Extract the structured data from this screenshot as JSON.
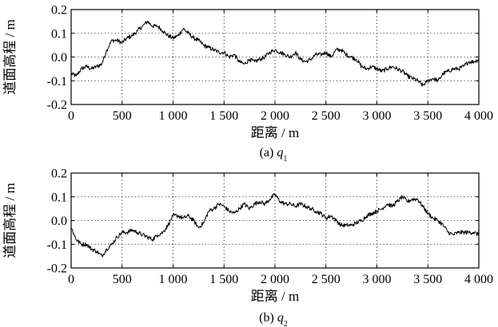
{
  "chart_data": [
    {
      "type": "line",
      "caption_prefix": "(a)",
      "caption_var": "q",
      "caption_sub": "1",
      "xlabel": "距离 / m",
      "ylabel": "道面高程 / m",
      "xlim": [
        0,
        4000
      ],
      "ylim": [
        -0.2,
        0.2
      ],
      "xticks": [
        0,
        500,
        1000,
        1500,
        2000,
        2500,
        3000,
        3500,
        4000
      ],
      "xtick_labels": [
        "0",
        "500",
        "1 000",
        "1 500",
        "2 000",
        "2 500",
        "3 000",
        "3 500",
        "4 000"
      ],
      "yticks": [
        -0.2,
        -0.1,
        0.0,
        0.1,
        0.2
      ],
      "ytick_labels": [
        "-0.2",
        "-0.1",
        "0.0",
        "0.1",
        "0.2"
      ],
      "grid": true,
      "series": [
        {
          "color": "#000000",
          "x": [
            0,
            50,
            100,
            150,
            200,
            250,
            300,
            350,
            400,
            450,
            500,
            550,
            600,
            650,
            700,
            750,
            800,
            850,
            900,
            950,
            1000,
            1050,
            1100,
            1150,
            1200,
            1250,
            1300,
            1350,
            1400,
            1450,
            1500,
            1550,
            1600,
            1650,
            1700,
            1750,
            1800,
            1850,
            1900,
            1950,
            2000,
            2050,
            2100,
            2150,
            2200,
            2250,
            2300,
            2350,
            2400,
            2450,
            2500,
            2550,
            2600,
            2650,
            2700,
            2750,
            2800,
            2850,
            2900,
            2950,
            3000,
            3050,
            3100,
            3150,
            3200,
            3250,
            3300,
            3350,
            3400,
            3450,
            3500,
            3550,
            3600,
            3650,
            3700,
            3750,
            3800,
            3850,
            3900,
            3950,
            4000
          ],
          "y": [
            -0.07,
            -0.08,
            -0.05,
            -0.04,
            -0.05,
            -0.04,
            -0.03,
            0.03,
            0.07,
            0.07,
            0.06,
            0.08,
            0.09,
            0.11,
            0.13,
            0.15,
            0.13,
            0.13,
            0.11,
            0.09,
            0.08,
            0.09,
            0.12,
            0.1,
            0.08,
            0.07,
            0.05,
            0.04,
            0.03,
            0.02,
            0.02,
            0.0,
            0.01,
            -0.02,
            -0.03,
            -0.01,
            -0.02,
            -0.01,
            0.0,
            0.02,
            0.03,
            0.02,
            0.01,
            0.0,
            0.02,
            -0.01,
            -0.02,
            -0.01,
            0.01,
            0.01,
            0.02,
            0.0,
            0.03,
            0.03,
            0.01,
            0.0,
            -0.01,
            -0.04,
            -0.05,
            -0.04,
            -0.05,
            -0.06,
            -0.05,
            -0.04,
            -0.05,
            -0.06,
            -0.08,
            -0.09,
            -0.1,
            -0.12,
            -0.1,
            -0.09,
            -0.1,
            -0.07,
            -0.06,
            -0.05,
            -0.05,
            -0.04,
            -0.02,
            -0.02,
            -0.01
          ]
        }
      ]
    },
    {
      "type": "line",
      "caption_prefix": "(b)",
      "caption_var": "q",
      "caption_sub": "2",
      "xlabel": "距离 / m",
      "ylabel": "道面高程 / m",
      "xlim": [
        0,
        4000
      ],
      "ylim": [
        -0.2,
        0.2
      ],
      "xticks": [
        0,
        500,
        1000,
        1500,
        2000,
        2500,
        3000,
        3500,
        4000
      ],
      "xtick_labels": [
        "0",
        "500",
        "1 000",
        "1 500",
        "2 000",
        "2 500",
        "3 000",
        "3 500",
        "4 000"
      ],
      "yticks": [
        -0.2,
        -0.1,
        0.0,
        0.1,
        0.2
      ],
      "ytick_labels": [
        "-0.2",
        "-0.1",
        "0.0",
        "0.1",
        "0.2"
      ],
      "grid": true,
      "series": [
        {
          "color": "#000000",
          "x": [
            0,
            50,
            100,
            150,
            200,
            250,
            300,
            350,
            400,
            450,
            500,
            550,
            600,
            650,
            700,
            750,
            800,
            850,
            900,
            950,
            1000,
            1050,
            1100,
            1150,
            1200,
            1250,
            1300,
            1350,
            1400,
            1450,
            1500,
            1550,
            1600,
            1650,
            1700,
            1750,
            1800,
            1850,
            1900,
            1950,
            2000,
            2050,
            2100,
            2150,
            2200,
            2250,
            2300,
            2350,
            2400,
            2450,
            2500,
            2550,
            2600,
            2650,
            2700,
            2750,
            2800,
            2850,
            2900,
            2950,
            3000,
            3050,
            3100,
            3150,
            3200,
            3250,
            3300,
            3350,
            3400,
            3450,
            3500,
            3550,
            3600,
            3650,
            3700,
            3750,
            3800,
            3850,
            3900,
            3950,
            4000
          ],
          "y": [
            -0.03,
            -0.08,
            -0.1,
            -0.1,
            -0.12,
            -0.13,
            -0.15,
            -0.12,
            -0.1,
            -0.07,
            -0.05,
            -0.05,
            -0.04,
            -0.05,
            -0.06,
            -0.07,
            -0.08,
            -0.06,
            -0.05,
            -0.02,
            0.02,
            0.02,
            0.01,
            0.02,
            0.0,
            -0.03,
            -0.01,
            0.04,
            0.05,
            0.07,
            0.06,
            0.04,
            0.03,
            0.05,
            0.07,
            0.05,
            0.07,
            0.08,
            0.07,
            0.09,
            0.11,
            0.08,
            0.07,
            0.07,
            0.06,
            0.07,
            0.06,
            0.05,
            0.04,
            0.03,
            0.01,
            0.02,
            0.0,
            -0.02,
            -0.02,
            -0.02,
            -0.01,
            0.0,
            0.02,
            0.03,
            0.04,
            0.05,
            0.07,
            0.06,
            0.08,
            0.1,
            0.08,
            0.09,
            0.09,
            0.06,
            0.03,
            0.01,
            0.0,
            -0.02,
            -0.05,
            -0.06,
            -0.05,
            -0.05,
            -0.05,
            -0.05,
            -0.06
          ]
        }
      ]
    }
  ]
}
